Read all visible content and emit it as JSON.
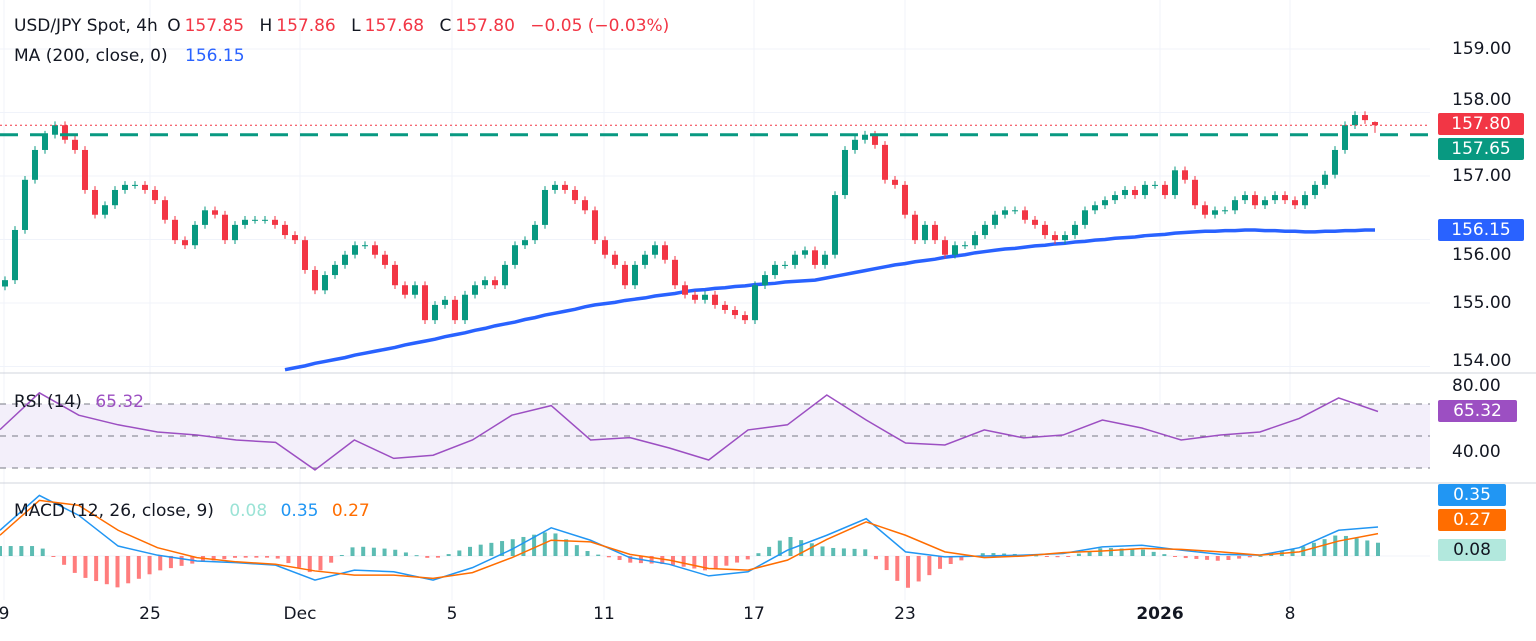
{
  "header": {
    "symbol": "USD/JPY Spot, 4h",
    "o_label": "O",
    "o": "157.85",
    "h_label": "H",
    "h": "157.86",
    "l_label": "L",
    "l": "157.68",
    "c_label": "C",
    "c": "157.80",
    "change": "−0.05 (−0.03%)",
    "ma_label": "MA (200, close, 0)",
    "ma_value": "156.15"
  },
  "rsi_legend": {
    "label": "RSI (14)",
    "value": "65.32"
  },
  "macd_legend": {
    "label": "MACD (12, 26, close, 9)",
    "hist": "0.08",
    "macd": "0.35",
    "signal": "0.27"
  },
  "price_axis": [
    "159.00",
    "158.00",
    "157.00",
    "156.00",
    "155.00",
    "154.00"
  ],
  "rsi_axis": [
    "80.00",
    "40.00"
  ],
  "tags": {
    "last_price": "157.80",
    "support": "157.65",
    "ma": "156.15",
    "rsi": "65.32",
    "macd": "0.35",
    "signal": "0.27",
    "hist": "0.08"
  },
  "x_axis": [
    "9",
    "25",
    "Dec",
    "5",
    "11",
    "17",
    "23",
    "2026",
    "8"
  ],
  "colors": {
    "up": "#089981",
    "down": "#f23645",
    "ma": "#2962ff",
    "rsi": "#9c4fc2",
    "macd": "#2196f3",
    "signal": "#ff6d00",
    "support": "#089981",
    "last": "#f23645"
  },
  "chart_data": [
    {
      "type": "candlestick",
      "title": "USD/JPY Spot, 4h",
      "ylim": [
        154,
        159
      ],
      "support_level": 157.65,
      "last_price": 157.8,
      "last_candle": {
        "open": 157.85,
        "high": 157.86,
        "low": 157.68,
        "close": 157.8
      },
      "close": [
        155.36,
        156.15,
        156.94,
        157.41,
        157.65,
        157.8,
        157.57,
        157.41,
        156.78,
        156.39,
        156.54,
        156.78,
        156.86,
        156.86,
        156.78,
        156.62,
        156.31,
        155.99,
        155.91,
        156.23,
        156.46,
        156.39,
        155.99,
        156.23,
        156.31,
        156.31,
        156.31,
        156.23,
        156.07,
        155.99,
        155.52,
        155.2,
        155.44,
        155.6,
        155.76,
        155.91,
        155.91,
        155.76,
        155.6,
        155.28,
        155.13,
        155.28,
        154.73,
        154.97,
        155.05,
        154.73,
        155.13,
        155.28,
        155.36,
        155.28,
        155.6,
        155.91,
        155.99,
        156.23,
        156.78,
        156.86,
        156.78,
        156.62,
        156.46,
        155.99,
        155.76,
        155.6,
        155.28,
        155.6,
        155.76,
        155.91,
        155.68,
        155.28,
        155.13,
        155.05,
        155.13,
        154.97,
        154.89,
        154.81,
        154.73,
        155.28,
        155.44,
        155.6,
        155.6,
        155.76,
        155.83,
        155.6,
        155.76,
        156.7,
        157.41,
        157.57,
        157.65,
        157.49,
        156.94,
        156.86,
        156.39,
        155.99,
        156.23,
        155.99,
        155.76,
        155.91,
        155.91,
        156.07,
        156.23,
        156.39,
        156.46,
        156.46,
        156.31,
        156.23,
        156.07,
        155.99,
        156.07,
        156.23,
        156.46,
        156.54,
        156.62,
        156.7,
        156.78,
        156.7,
        156.86,
        156.86,
        156.7,
        157.09,
        156.94,
        156.54,
        156.39,
        156.46,
        156.46,
        156.62,
        156.7,
        156.54,
        156.62,
        156.7,
        156.62,
        156.54,
        156.7,
        156.86,
        157.02,
        157.41,
        157.8,
        157.96,
        157.88,
        157.8
      ],
      "ma200": [
        null,
        null,
        null,
        null,
        null,
        null,
        null,
        null,
        null,
        null,
        null,
        null,
        null,
        null,
        null,
        null,
        null,
        null,
        null,
        null,
        null,
        null,
        null,
        null,
        null,
        null,
        null,
        null,
        153.95,
        153.98,
        154.01,
        154.05,
        154.08,
        154.11,
        154.14,
        154.18,
        154.21,
        154.24,
        154.27,
        154.3,
        154.34,
        154.37,
        154.4,
        154.43,
        154.47,
        154.5,
        154.53,
        154.57,
        154.6,
        154.64,
        154.67,
        154.7,
        154.74,
        154.77,
        154.81,
        154.84,
        154.87,
        154.9,
        154.94,
        154.97,
        154.99,
        155.01,
        155.04,
        155.06,
        155.08,
        155.11,
        155.13,
        155.15,
        155.18,
        155.2,
        155.21,
        155.23,
        155.24,
        155.26,
        155.27,
        155.29,
        155.3,
        155.31,
        155.33,
        155.34,
        155.35,
        155.36,
        155.39,
        155.42,
        155.45,
        155.48,
        155.51,
        155.54,
        155.57,
        155.6,
        155.62,
        155.65,
        155.67,
        155.69,
        155.72,
        155.74,
        155.76,
        155.79,
        155.81,
        155.83,
        155.85,
        155.86,
        155.88,
        155.9,
        155.91,
        155.93,
        155.94,
        155.96,
        155.97,
        155.99,
        156.0,
        156.02,
        156.03,
        156.04,
        156.06,
        156.07,
        156.08,
        156.1,
        156.11,
        156.12,
        156.13,
        156.13,
        156.14,
        156.14,
        156.15,
        156.15,
        156.14,
        156.14,
        156.13,
        156.13,
        156.12,
        156.12,
        156.13,
        156.13,
        156.14,
        156.14,
        156.15,
        156.15
      ]
    },
    {
      "type": "line",
      "title": "RSI (14)",
      "ylim": [
        20,
        85
      ],
      "band": [
        30,
        70
      ],
      "values": [
        54,
        77,
        63,
        57,
        52.5,
        50.6,
        47.5,
        46,
        28.8,
        47.5,
        36,
        38,
        47.5,
        63,
        69,
        47.5,
        49,
        42.5,
        35,
        53.8,
        57,
        75.6,
        60,
        45.6,
        44.4,
        53.8,
        48.8,
        50.6,
        60,
        55,
        47.5,
        50.6,
        52.5,
        61,
        73.8,
        65.32
      ]
    },
    {
      "type": "line",
      "title": "MACD (12, 26, close, 9)",
      "series": [
        {
          "name": "MACD",
          "values": [
            0.31,
            0.73,
            0.49,
            0.12,
            0.01,
            -0.06,
            -0.08,
            -0.11,
            -0.29,
            -0.17,
            -0.19,
            -0.29,
            -0.14,
            0.08,
            0.34,
            0.19,
            -0.02,
            -0.1,
            -0.24,
            -0.19,
            0.07,
            0.25,
            0.45,
            0.05,
            -0.01,
            0.0,
            0.01,
            0.03,
            0.11,
            0.13,
            0.07,
            0.02,
            0.01,
            0.1,
            0.31,
            0.35
          ]
        },
        {
          "name": "Signal",
          "values": [
            0.25,
            0.67,
            0.61,
            0.31,
            0.1,
            -0.02,
            -0.07,
            -0.1,
            -0.18,
            -0.23,
            -0.23,
            -0.27,
            -0.2,
            -0.02,
            0.19,
            0.17,
            0.02,
            -0.05,
            -0.15,
            -0.17,
            -0.05,
            0.2,
            0.41,
            0.25,
            0.05,
            -0.02,
            0.0,
            0.04,
            0.06,
            0.09,
            0.08,
            0.05,
            0.01,
            0.05,
            0.18,
            0.27
          ]
        }
      ]
    }
  ]
}
